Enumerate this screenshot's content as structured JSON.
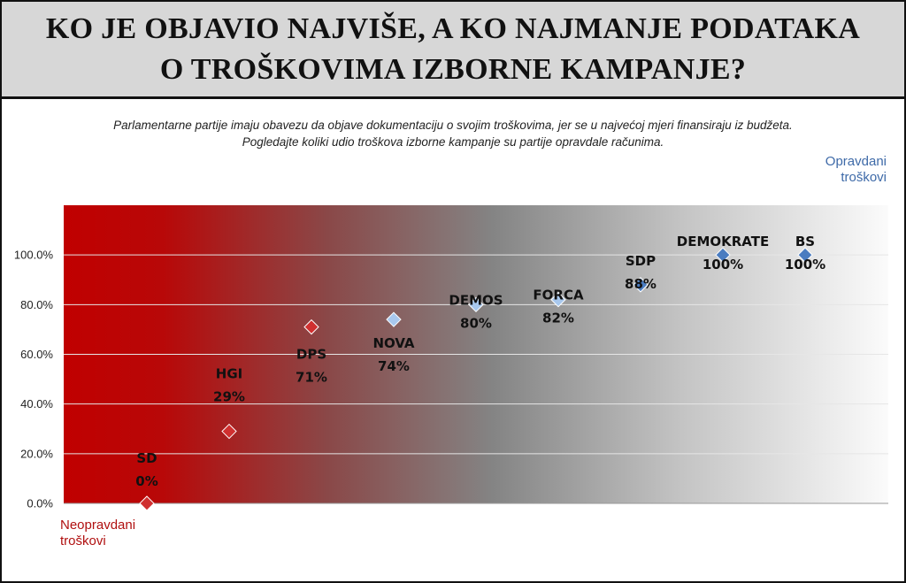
{
  "title_line1": "KO JE OBJAVIO NAJVIŠE, A KO NAJMANJE PODATAKA",
  "title_line2": "O TROŠKOVIMA IZBORNE KAMPANJE?",
  "subtitle_line1": "Parlamentarne partije imaju obavezu da objave dokumentaciju o svojim troškovima, jer se u najvećoj mjeri finansiraju iz budžeta.",
  "subtitle_line2": "Pogledajte koliki udio troškova izborne kampanje su partije opravdale računima.",
  "top_label_line1": "Opravdani",
  "top_label_line2": "troškovi",
  "bottom_label_line1": "Neopravdani",
  "bottom_label_line2": "troškovi",
  "chart_data": {
    "type": "scatter",
    "ylim": [
      0,
      120
    ],
    "yticks": [
      0,
      20,
      40,
      60,
      80,
      100
    ],
    "ytick_labels": [
      "0.0%",
      "20.0%",
      "40.0%",
      "60.0%",
      "80.0%",
      "100.0%"
    ],
    "grid": true,
    "points": [
      {
        "name": "SD",
        "label": "0%",
        "value": 0,
        "color": "#d03030"
      },
      {
        "name": "HGI",
        "label": "29%",
        "value": 29,
        "color": "#d03030"
      },
      {
        "name": "DPS",
        "label": "71%",
        "value": 71,
        "color": "#d03030"
      },
      {
        "name": "NOVA",
        "label": "74%",
        "value": 74,
        "color": "#a8c8ee"
      },
      {
        "name": "DEMOS",
        "label": "80%",
        "value": 80,
        "color": "#a8c8ee"
      },
      {
        "name": "FORCA",
        "label": "82%",
        "value": 82,
        "color": "#a8c8ee"
      },
      {
        "name": "SDP",
        "label": "88%",
        "value": 88,
        "color": "#4a7cc0"
      },
      {
        "name": "DEMOKRATE",
        "label": "100%",
        "value": 100,
        "color": "#4a7cc0"
      },
      {
        "name": "BS",
        "label": "100%",
        "value": 100,
        "color": "#4a7cc0"
      }
    ]
  }
}
